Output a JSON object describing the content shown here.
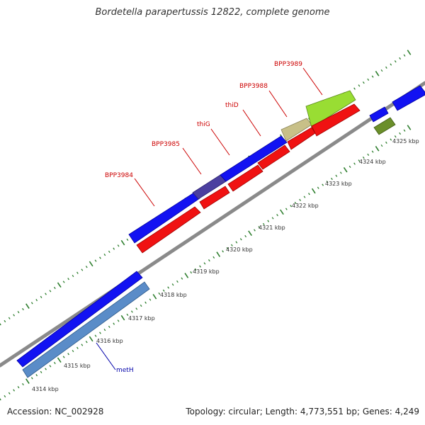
{
  "header": {
    "title": "Bordetella parapertussis 12822, complete genome"
  },
  "footer": {
    "accession": "Accession: NC_002928",
    "summary": "Topology: circular; Length: 4,773,551 bp; Genes: 4,249"
  },
  "colors": {
    "background": "#ffffff",
    "backbone": "#888888",
    "cds_forward": "#1010f0",
    "cds_reverse": "#f01010",
    "highlight_purple": "#4b3fa0",
    "highlight_tan": "#c8c088",
    "highlight_lime": "#99dd33",
    "highlight_olive": "#6b8f2a",
    "steelblue": "#5a8cc8",
    "tick_green": "#2f7f2f",
    "label_red": "#cc0000",
    "label_blue": "#0000aa"
  },
  "scale": {
    "ticks": [
      "4314 kbp",
      "4315 kbp",
      "4316 kbp",
      "4317 kbp",
      "4318 kbp",
      "4319 kbp",
      "4320 kbp",
      "4321 kbp",
      "4322 kbp",
      "4323 kbp",
      "4324 kbp",
      "4325 kbp"
    ]
  },
  "genes": [
    {
      "label": "BPP3984",
      "label_color": "red"
    },
    {
      "label": "BPP3985",
      "label_color": "red"
    },
    {
      "label": "thiG",
      "label_color": "red"
    },
    {
      "label": "thiD",
      "label_color": "red"
    },
    {
      "label": "BPP3988",
      "label_color": "red"
    },
    {
      "label": "BPP3989",
      "label_color": "red"
    },
    {
      "label": "metH",
      "label_color": "blue"
    }
  ]
}
